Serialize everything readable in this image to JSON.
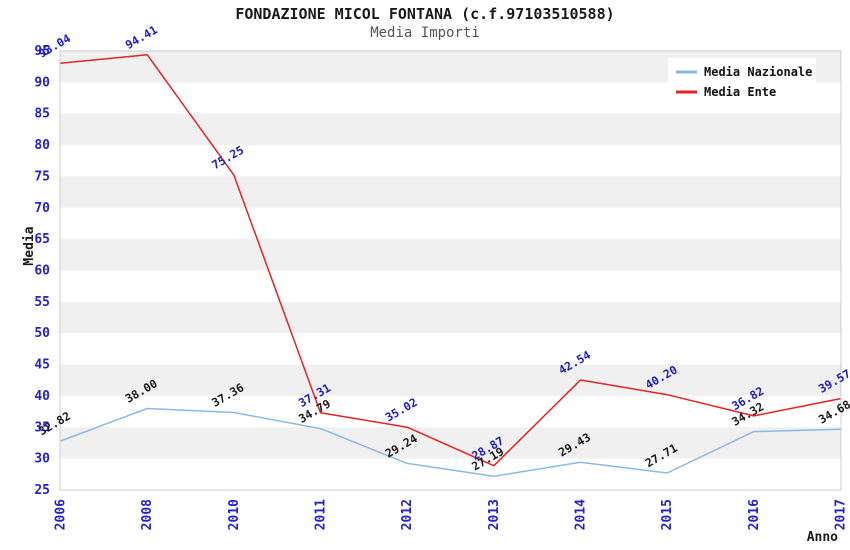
{
  "page": {
    "title": "FONDAZIONE MICOL FONTANA (c.f.97103510588)",
    "subtitle": "Media Importi"
  },
  "chart_data": {
    "type": "line",
    "title": "FONDAZIONE MICOL FONTANA (c.f.97103510588)",
    "subtitle": "Media Importi",
    "xlabel": "Anno",
    "ylabel": "Media",
    "categories": [
      "2006",
      "2008",
      "2010",
      "2011",
      "2012",
      "2013",
      "2014",
      "2015",
      "2016",
      "2017"
    ],
    "series": [
      {
        "name": "Media Nazionale",
        "color": "#8ab9e8",
        "label_color": "#1a1a1a",
        "values": [
          32.82,
          38.0,
          37.36,
          34.79,
          29.24,
          27.19,
          29.43,
          27.71,
          34.32,
          34.68
        ],
        "labels": [
          "32.82",
          "38.00",
          "37.36",
          "34.79",
          "29.24",
          "27.19",
          "29.43",
          "27.71",
          "34.32",
          "34.68"
        ]
      },
      {
        "name": "Media Ente",
        "color": "#e62222",
        "label_color": "#1a1acc",
        "values": [
          93.04,
          94.41,
          75.25,
          37.31,
          35.02,
          28.87,
          42.54,
          40.2,
          36.82,
          39.57
        ],
        "labels": [
          "93.04",
          "94.41",
          "75.25",
          "37.31",
          "35.02",
          "28.87",
          "42.54",
          "40.20",
          "36.82",
          "39.57"
        ]
      }
    ],
    "ylim": [
      25,
      95
    ],
    "ytick_step": 5,
    "grid": "horizontal-bands",
    "band_colors": [
      "#f0f0f0",
      "#ffffff"
    ],
    "border_color": "#cccccc",
    "tick_color": "#2222cc",
    "legend_position": "top-right"
  }
}
